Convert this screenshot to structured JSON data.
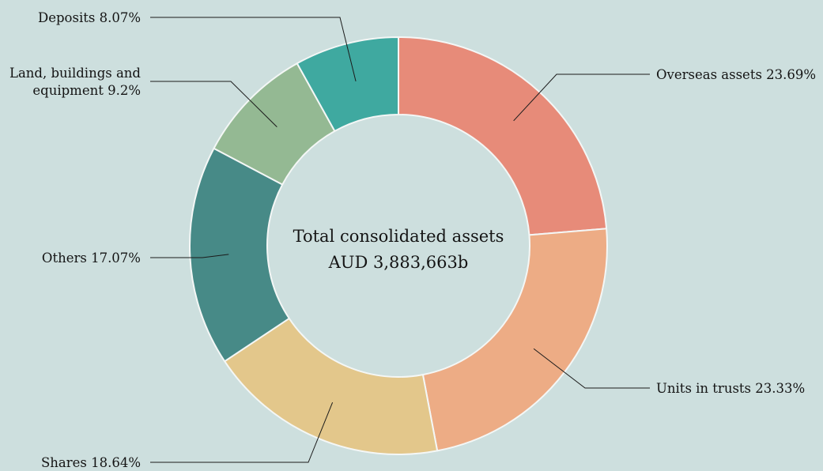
{
  "chart_data": {
    "type": "pie",
    "donut": true,
    "center_label": {
      "line1": "Total consolidated assets",
      "line2": "AUD 3,883,663b"
    },
    "slices": [
      {
        "name": "Overseas assets",
        "value": 23.69,
        "label": "Overseas assets 23.69%",
        "color": "#e78b79"
      },
      {
        "name": "Units in trusts",
        "value": 23.33,
        "label": "Units in trusts 23.33%",
        "color": "#edac85"
      },
      {
        "name": "Shares",
        "value": 18.64,
        "label": "Shares 18.64%",
        "color": "#e3c78b"
      },
      {
        "name": "Others",
        "value": 17.07,
        "label": "Others 17.07%",
        "color": "#478a87"
      },
      {
        "name": "Land, buildings and equipment",
        "value": 9.2,
        "label_lines": [
          "Land, buildings and",
          "equipment 9.2%"
        ],
        "color": "#94b993"
      },
      {
        "name": "Deposits",
        "value": 8.07,
        "label": "Deposits 8.07%",
        "color": "#3fa9a0"
      }
    ]
  }
}
